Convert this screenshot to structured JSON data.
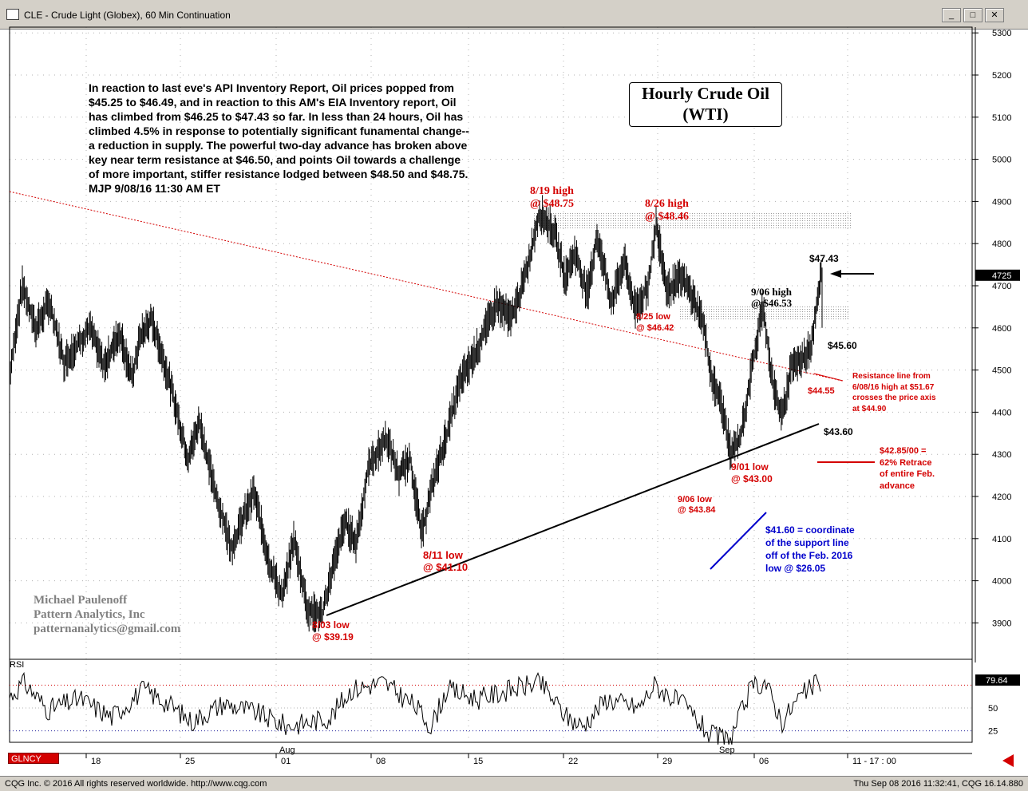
{
  "window": {
    "title": "CLE - Crude Light (Globex), 60 Min Continuation",
    "btn_min": "_",
    "btn_max": "□",
    "btn_close": "✕"
  },
  "chart_box": {
    "line1": "Hourly Crude Oil",
    "line2": "(WTI)"
  },
  "commentary": [
    "In reaction to last eve's API Inventory Report, Oil prices popped from",
    "$45.25 to $46.49, and in reaction to this AM's EIA Inventory report, Oil",
    "has climbed from $46.25 to $47.43 so far. In less than 24 hours, Oil has",
    "climbed 4.5% in response to potentially significant funamental change--",
    "a reduction in supply. The powerful two-day advance has broken above",
    "key near term resistance at $46.50, and points Oil towards a challenge",
    "of more important, stiffer resistance lodged between $48.50 and $48.75.",
    "MJP 9/08/16 11:30 AM ET"
  ],
  "signature": [
    "Michael Paulenoff",
    "Pattern Analytics, Inc",
    "patternanalytics@gmail.com"
  ],
  "annotations": {
    "high_819": "8/19 high\n@ $48.75",
    "high_826": "8/26 high\n@ $48.46",
    "low_825": "8/25 low\n@ $46.42",
    "high_906": "9/06 high\n@ $46.53",
    "price_4743": "$47.43",
    "price_4560": "$45.60",
    "price_4455": "$44.55",
    "price_4360": "$43.60",
    "resistance": "Resistance line from\n6/08/16 high at $51.67\ncrosses the price axis\nat $44.90",
    "retrace": "$42.85/00 =\n62% Retrace\nof entire Feb.\nadvance",
    "low_901": "9/01 low\n@ $43.00",
    "low_906": "9/06 low\n@ $43.84",
    "coordinate": "$41.60 = coordinate\nof the support line\noff of the Feb. 2016\nlow @ $26.05",
    "low_811": "8/11 low\n@ $41.10",
    "low_803": "8/03 low\n@ $39.19"
  },
  "rsi": {
    "label": "RSI",
    "current": "79.64",
    "levels": [
      "50",
      "25"
    ]
  },
  "bottom": {
    "currency": "GLNCY",
    "session": "11 - 17 : 00"
  },
  "footer": {
    "left": "CQG Inc. © 2016 All rights reserved worldwide. http://www.cqg.com",
    "right": "Thu Sep 08 2016 11:32:41, CQG 16.14.880"
  },
  "colors": {
    "annotation": "#d40000",
    "support_note": "#0000cc",
    "price_marker_bg": "#000000"
  },
  "chart_data": {
    "type": "line",
    "title": "Hourly Crude Oil (WTI)",
    "instrument": "CLE - Crude Light (Globex), 60 Min Continuation",
    "y_axis_ticks": [
      5300,
      5200,
      5100,
      5000,
      4900,
      4800,
      4700,
      4600,
      4500,
      4400,
      4300,
      4200,
      4100,
      4000,
      3900
    ],
    "ylim": [
      3830,
      5310
    ],
    "x_tick_labels": [
      "18",
      "25",
      "01",
      "08",
      "15",
      "22",
      "29",
      "06",
      "11 - 17 : 00"
    ],
    "x_month_labels": [
      "Aug",
      "Sep"
    ],
    "current_price_label": "4725",
    "price_anchors": [
      {
        "date": "07/14",
        "price": 4500
      },
      {
        "date": "07/15",
        "price": 4690
      },
      {
        "date": "07/18",
        "price": 4600
      },
      {
        "date": "07/19",
        "price": 4520
      },
      {
        "date": "07/21",
        "price": 4490
      },
      {
        "date": "07/22",
        "price": 4580
      },
      {
        "date": "07/25",
        "price": 4330
      },
      {
        "date": "07/26",
        "price": 4260
      },
      {
        "date": "07/27",
        "price": 4210
      },
      {
        "date": "07/28",
        "price": 4130
      },
      {
        "date": "07/29",
        "price": 4040
      },
      {
        "date": "07/31",
        "price": 4070
      },
      {
        "date": "08/01",
        "price": 3980
      },
      {
        "date": "08/03",
        "price": 3919
      },
      {
        "date": "08/04",
        "price": 4010
      },
      {
        "date": "08/05",
        "price": 4140
      },
      {
        "date": "08/08",
        "price": 4270
      },
      {
        "date": "08/09",
        "price": 4340
      },
      {
        "date": "08/10",
        "price": 4290
      },
      {
        "date": "08/11",
        "price": 4110
      },
      {
        "date": "08/12",
        "price": 4270
      },
      {
        "date": "08/15",
        "price": 4500
      },
      {
        "date": "08/16",
        "price": 4600
      },
      {
        "date": "08/17",
        "price": 4640
      },
      {
        "date": "08/18",
        "price": 4720
      },
      {
        "date": "08/19",
        "price": 4875
      },
      {
        "date": "08/22",
        "price": 4720
      },
      {
        "date": "08/23",
        "price": 4780
      },
      {
        "date": "08/24",
        "price": 4730
      },
      {
        "date": "08/25",
        "price": 4642
      },
      {
        "date": "08/26",
        "price": 4846
      },
      {
        "date": "08/29",
        "price": 4670
      },
      {
        "date": "08/30",
        "price": 4680
      },
      {
        "date": "08/31",
        "price": 4550
      },
      {
        "date": "09/01",
        "price": 4300
      },
      {
        "date": "09/02",
        "price": 4420
      },
      {
        "date": "09/05",
        "price": 4460
      },
      {
        "date": "09/06",
        "price": 4653
      },
      {
        "date": "09/06b",
        "price": 4384
      },
      {
        "date": "09/07",
        "price": 4500
      },
      {
        "date": "09/07b",
        "price": 4560
      },
      {
        "date": "09/08",
        "price": 4743
      },
      {
        "date": "09/08b",
        "price": 4725
      }
    ],
    "levels": {
      "resistance_zone_high": [
        4848,
        4875
      ],
      "resistance_zone_906": [
        4642,
        4653
      ],
      "retrace_level": 4285,
      "support_line_coordinate": 4160
    },
    "rsi": {
      "current": 79.64,
      "ylim": [
        0,
        100
      ],
      "levels": [
        25,
        50,
        75
      ]
    },
    "grid": true
  }
}
